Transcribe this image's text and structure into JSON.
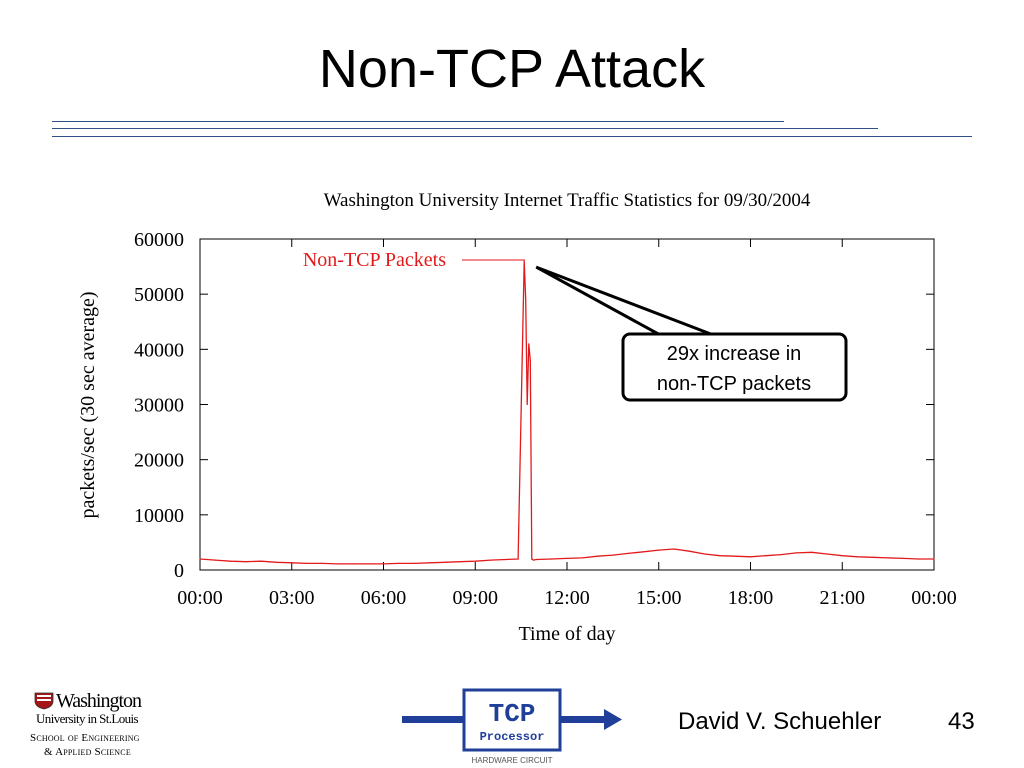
{
  "slide": {
    "title": "Non-TCP Attack",
    "author": "David V. Schuehler",
    "page_number": "43"
  },
  "colors": {
    "rule": "#2f4f86",
    "series": "#e31a1c",
    "arrow": "#1f3f98",
    "tcp_logo_border": "#1f3f98"
  },
  "logos": {
    "washu": {
      "line1": "Washington",
      "line2": "University in St.Louis",
      "line3": "School of Engineering",
      "line4": "& Applied Science"
    },
    "tcp": {
      "main": "TCP",
      "sub": "Processor",
      "caption": "HARDWARE CIRCUIT"
    }
  },
  "chart_data": {
    "type": "line",
    "title": "Washington University Internet Traffic Statistics for 09/30/2004",
    "xlabel": "Time of day",
    "ylabel": "packets/sec (30 sec average)",
    "xlim": [
      0,
      24
    ],
    "ylim": [
      0,
      60000
    ],
    "x_ticks": [
      {
        "value": 0,
        "label": "00:00"
      },
      {
        "value": 3,
        "label": "03:00"
      },
      {
        "value": 6,
        "label": "06:00"
      },
      {
        "value": 9,
        "label": "09:00"
      },
      {
        "value": 12,
        "label": "12:00"
      },
      {
        "value": 15,
        "label": "15:00"
      },
      {
        "value": 18,
        "label": "18:00"
      },
      {
        "value": 21,
        "label": "21:00"
      },
      {
        "value": 24,
        "label": "00:00"
      }
    ],
    "y_ticks": [
      {
        "value": 0,
        "label": "0"
      },
      {
        "value": 10000,
        "label": "10000"
      },
      {
        "value": 20000,
        "label": "20000"
      },
      {
        "value": 30000,
        "label": "30000"
      },
      {
        "value": 40000,
        "label": "40000"
      },
      {
        "value": 50000,
        "label": "50000"
      },
      {
        "value": 60000,
        "label": "60000"
      }
    ],
    "legend_position": "top-left",
    "series": [
      {
        "name": "Non-TCP Packets",
        "color": "#e31a1c",
        "x": [
          0,
          0.5,
          1,
          1.5,
          2,
          2.5,
          3,
          3.5,
          4,
          4.5,
          5,
          5.5,
          6,
          6.5,
          7,
          7.5,
          8,
          8.5,
          9,
          9.5,
          10,
          10.4,
          10.6,
          10.65,
          10.7,
          10.75,
          10.8,
          10.85,
          10.9,
          11,
          11.5,
          12,
          12.5,
          13,
          13.5,
          14,
          14.5,
          15,
          15.5,
          16,
          16.5,
          17,
          17.5,
          18,
          18.5,
          19,
          19.5,
          20,
          20.5,
          21,
          21.5,
          22,
          22.5,
          23,
          23.5,
          24
        ],
        "y": [
          2000,
          1800,
          1600,
          1500,
          1600,
          1400,
          1300,
          1200,
          1200,
          1100,
          1100,
          1100,
          1100,
          1200,
          1200,
          1300,
          1400,
          1500,
          1600,
          1800,
          1900,
          2000,
          56000,
          49000,
          30000,
          41000,
          38000,
          2000,
          1800,
          1900,
          2000,
          2100,
          2200,
          2500,
          2700,
          3000,
          3300,
          3600,
          3800,
          3400,
          2900,
          2600,
          2500,
          2400,
          2600,
          2800,
          3100,
          3200,
          2900,
          2600,
          2400,
          2300,
          2200,
          2100,
          2000,
          2000
        ]
      }
    ],
    "annotation": {
      "text_lines": [
        "29x increase in",
        "non-TCP packets"
      ],
      "points_to": {
        "x": 10.6,
        "y": 56000
      }
    }
  }
}
